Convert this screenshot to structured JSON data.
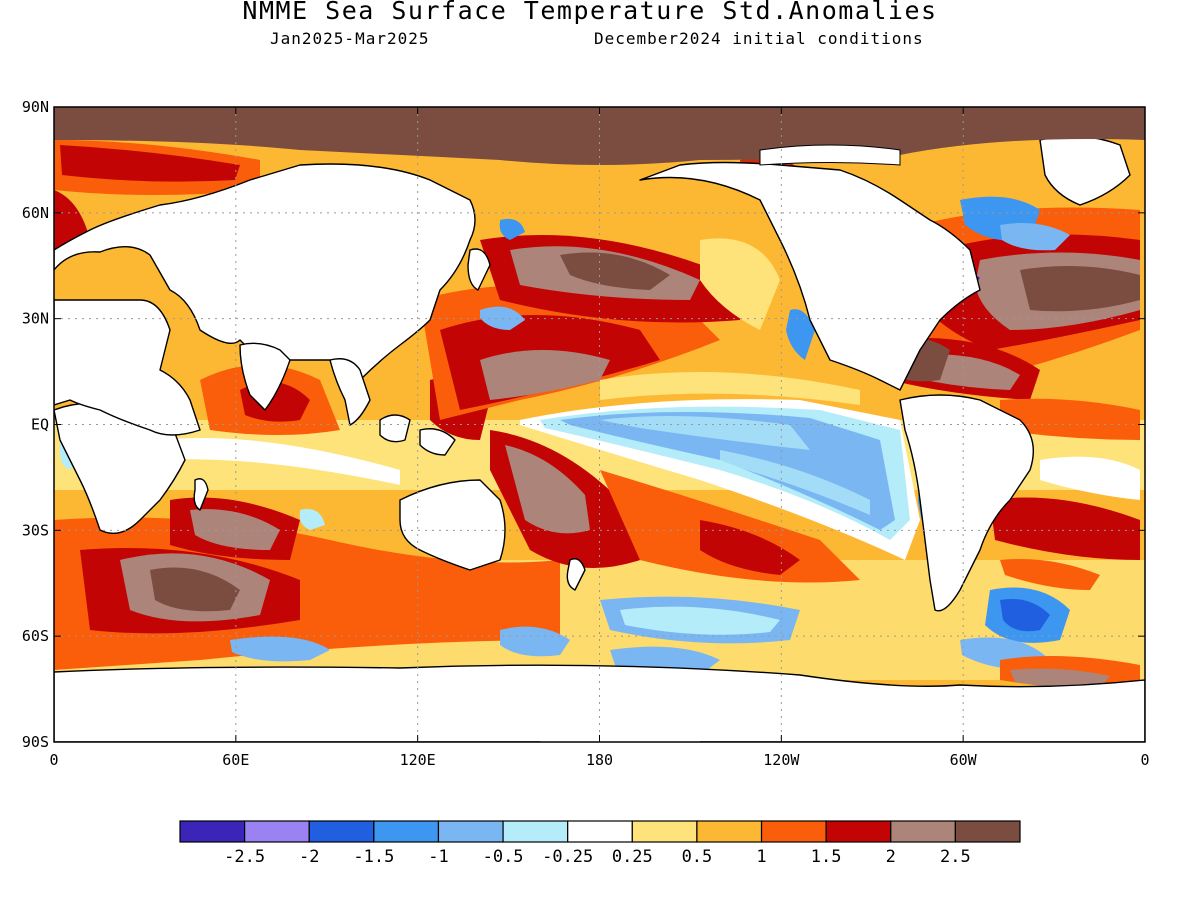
{
  "header": {
    "title": "NMME Sea Surface Temperature Std.Anomalies",
    "period": "Jan2025-Mar2025",
    "init": "December2024 initial conditions"
  },
  "map": {
    "projection": "equirectangular",
    "lon_range": [
      0,
      360
    ],
    "lat_range": [
      -90,
      90
    ],
    "grid": "dotted",
    "land_color": "#ffffff",
    "coastline_color": "#000000",
    "lat_ticks": [
      {
        "value": 90,
        "label": "90N"
      },
      {
        "value": 60,
        "label": "60N"
      },
      {
        "value": 30,
        "label": "30N"
      },
      {
        "value": 0,
        "label": "EQ"
      },
      {
        "value": -30,
        "label": "30S"
      },
      {
        "value": -60,
        "label": "60S"
      },
      {
        "value": -90,
        "label": "90S"
      }
    ],
    "lon_ticks": [
      {
        "value": 0,
        "label": "0"
      },
      {
        "value": 60,
        "label": "60E"
      },
      {
        "value": 120,
        "label": "120E"
      },
      {
        "value": 180,
        "label": "180"
      },
      {
        "value": 240,
        "label": "120W"
      },
      {
        "value": 300,
        "label": "60W"
      },
      {
        "value": 360,
        "label": "0"
      }
    ]
  },
  "colorbar": {
    "colors": [
      "#3b25b8",
      "#9a82f2",
      "#1f5fe0",
      "#3d96f0",
      "#7ab6f2",
      "#b4ecfa",
      "#ffffff",
      "#fde37a",
      "#fdb833",
      "#fa5e0a",
      "#c20404",
      "#ad8479",
      "#7a4d40"
    ],
    "labels": [
      "-2.5",
      "-2",
      "-1.5",
      "-1",
      "-0.5",
      "-0.25",
      "0.25",
      "0.5",
      "1",
      "1.5",
      "2",
      "2.5"
    ]
  }
}
